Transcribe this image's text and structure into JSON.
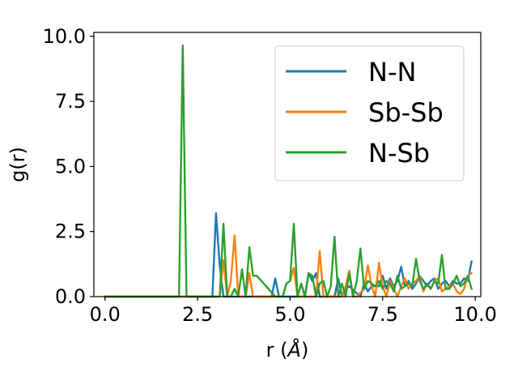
{
  "chart_data": {
    "type": "line",
    "xlabel": "r (",
    "xlabel_unit": "Å",
    "xlabel_close": ")",
    "ylabel": "g(r)",
    "xlim": [
      -0.3,
      10.15
    ],
    "ylim": [
      0.0,
      10.15
    ],
    "xticks": [
      0.0,
      2.5,
      5.0,
      7.5,
      10.0
    ],
    "xtick_labels": [
      "0.0",
      "2.5",
      "5.0",
      "7.5",
      "10.0"
    ],
    "yticks": [
      0.0,
      2.5,
      5.0,
      7.5,
      10.0
    ],
    "ytick_labels": [
      "0.0",
      "2.5",
      "5.0",
      "7.5",
      "10.0"
    ],
    "grid": false,
    "legend_position": "top-right",
    "series": [
      {
        "name": "N-N",
        "color": "#1f77b4",
        "x": [
          0.0,
          2.9,
          3.0,
          3.1,
          3.2,
          4.5,
          4.6,
          4.7,
          4.8,
          5.4,
          5.5,
          5.6,
          5.7,
          5.8,
          6.2,
          6.3,
          6.4,
          6.5,
          6.6,
          6.9,
          7.0,
          7.1,
          7.2,
          7.4,
          7.5,
          7.6,
          7.7,
          7.8,
          7.9,
          8.0,
          8.1,
          8.2,
          8.3,
          8.4,
          8.5,
          8.6,
          8.7,
          8.8,
          8.9,
          9.0,
          9.1,
          9.2,
          9.3,
          9.4,
          9.5,
          9.6,
          9.7,
          9.8,
          9.9
        ],
        "y": [
          0.0,
          0.0,
          3.2,
          1.2,
          0.0,
          0.0,
          0.7,
          0.0,
          0.0,
          0.0,
          0.9,
          0.6,
          0.9,
          0.0,
          0.0,
          0.7,
          0.0,
          0.3,
          0.4,
          0.0,
          0.5,
          0.2,
          0.4,
          0.4,
          0.8,
          0.3,
          0.7,
          0.4,
          0.6,
          1.15,
          0.4,
          0.6,
          0.3,
          0.5,
          0.8,
          0.6,
          0.4,
          0.6,
          0.7,
          0.3,
          0.5,
          0.6,
          0.4,
          0.6,
          0.5,
          0.5,
          0.7,
          0.6,
          1.35
        ]
      },
      {
        "name": "Sb-Sb",
        "color": "#ff7f0e",
        "x": [
          0.0,
          3.1,
          3.2,
          3.3,
          3.4,
          3.5,
          3.6,
          3.8,
          3.9,
          4.0,
          4.1,
          4.8,
          4.9,
          5.0,
          5.1,
          5.2,
          5.7,
          5.8,
          5.9,
          6.4,
          6.5,
          6.6,
          6.7,
          6.8,
          7.0,
          7.1,
          7.2,
          7.3,
          7.4,
          7.5,
          7.6,
          7.7,
          7.8,
          7.9,
          8.0,
          8.1,
          8.2,
          8.3,
          8.4,
          8.5,
          8.6,
          8.7,
          8.8,
          8.9,
          9.0,
          9.1,
          9.2,
          9.3,
          9.4,
          9.5,
          9.6,
          9.7,
          9.8,
          9.9
        ],
        "y": [
          0.0,
          0.0,
          1.4,
          0.0,
          0.6,
          2.35,
          0.0,
          0.0,
          0.9,
          0.0,
          0.0,
          0.0,
          0.5,
          0.6,
          1.1,
          0.0,
          0.0,
          1.75,
          0.0,
          0.0,
          0.4,
          1.0,
          0.0,
          0.0,
          0.3,
          1.2,
          0.4,
          0.0,
          1.3,
          0.4,
          0.0,
          0.6,
          0.3,
          0.0,
          0.4,
          0.7,
          0.3,
          0.5,
          0.6,
          0.8,
          0.2,
          0.5,
          0.3,
          0.6,
          0.7,
          0.2,
          0.3,
          0.4,
          0.5,
          0.2,
          0.1,
          0.3,
          0.8,
          0.9
        ]
      },
      {
        "name": "N-Sb",
        "color": "#2ca02c",
        "x": [
          0.0,
          2.0,
          2.1,
          2.2,
          3.1,
          3.2,
          3.3,
          3.4,
          3.5,
          3.6,
          3.7,
          3.8,
          3.9,
          4.0,
          4.1,
          4.6,
          4.7,
          4.8,
          4.9,
          5.0,
          5.1,
          5.2,
          5.3,
          5.4,
          5.5,
          5.6,
          5.7,
          5.8,
          5.9,
          6.0,
          6.1,
          6.2,
          6.3,
          6.4,
          6.5,
          6.6,
          6.7,
          6.8,
          6.9,
          7.0,
          7.1,
          7.2,
          7.3,
          7.4,
          7.5,
          7.6,
          7.7,
          7.8,
          7.9,
          8.0,
          8.1,
          8.2,
          8.3,
          8.4,
          8.5,
          8.6,
          8.7,
          8.8,
          8.9,
          9.0,
          9.1,
          9.2,
          9.3,
          9.4,
          9.5,
          9.6,
          9.7,
          9.8,
          9.9
        ],
        "y": [
          0.0,
          0.0,
          9.65,
          0.0,
          0.0,
          2.8,
          0.0,
          0.0,
          0.3,
          0.0,
          1.05,
          0.0,
          1.9,
          0.8,
          0.8,
          0.0,
          0.0,
          0.0,
          0.5,
          0.6,
          2.8,
          0.0,
          0.5,
          0.0,
          0.9,
          0.8,
          0.0,
          0.5,
          0.6,
          0.0,
          0.4,
          2.3,
          0.0,
          0.5,
          0.0,
          0.9,
          0.0,
          0.6,
          1.85,
          0.3,
          0.6,
          0.5,
          0.4,
          0.6,
          0.3,
          0.6,
          0.5,
          0.2,
          0.8,
          0.3,
          0.4,
          0.5,
          0.4,
          1.45,
          0.6,
          0.3,
          0.5,
          0.3,
          0.6,
          0.5,
          1.6,
          0.3,
          0.3,
          0.5,
          0.8,
          0.4,
          0.5,
          0.8,
          0.3
        ]
      }
    ]
  }
}
